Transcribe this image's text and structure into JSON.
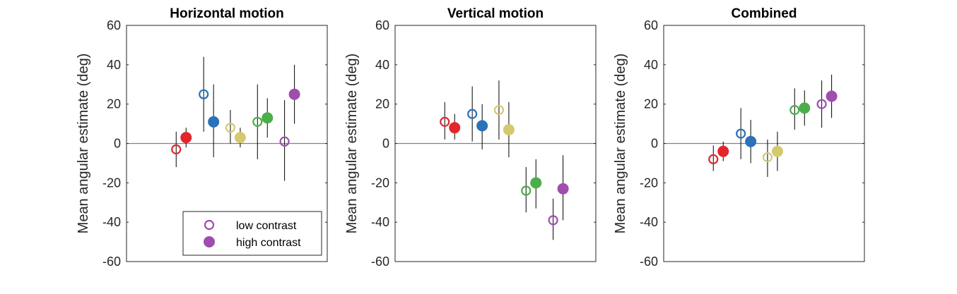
{
  "legend": {
    "position": "bottom-right",
    "entries": [
      {
        "label": "low contrast",
        "style": "open"
      },
      {
        "label": "high contrast",
        "style": "filled"
      }
    ],
    "color": "#9F4DAF"
  },
  "colors": {
    "red": "#E3262B",
    "blue": "#2B72B8",
    "yellow": "#D4C96E",
    "green": "#4AAE4A",
    "purple": "#9F4DAF"
  },
  "chart_data": [
    {
      "type": "scatter",
      "title": "Horizontal motion",
      "ylabel": "Mean angular estimate (deg)",
      "ylim": [
        -60,
        60
      ],
      "yticks": [
        -60,
        -40,
        -20,
        0,
        20,
        40,
        60
      ],
      "xticks": [],
      "reference_line": 0,
      "legend_shown": true,
      "conditions": [
        {
          "color": "red",
          "low": {
            "y": -3,
            "lo": -12,
            "hi": 6
          },
          "high": {
            "y": 3,
            "lo": -2,
            "hi": 8
          }
        },
        {
          "color": "blue",
          "low": {
            "y": 25,
            "lo": 6,
            "hi": 44
          },
          "high": {
            "y": 11,
            "lo": -7,
            "hi": 30
          }
        },
        {
          "color": "yellow",
          "low": {
            "y": 8,
            "lo": 0,
            "hi": 17
          },
          "high": {
            "y": 3,
            "lo": -2,
            "hi": 8
          }
        },
        {
          "color": "green",
          "low": {
            "y": 11,
            "lo": -8,
            "hi": 30
          },
          "high": {
            "y": 13,
            "lo": 3,
            "hi": 23
          }
        },
        {
          "color": "purple",
          "low": {
            "y": 1,
            "lo": -19,
            "hi": 22
          },
          "high": {
            "y": 25,
            "lo": 10,
            "hi": 40
          }
        }
      ]
    },
    {
      "type": "scatter",
      "title": "Vertical motion",
      "ylabel": "Mean angular estimate (deg)",
      "ylim": [
        -60,
        60
      ],
      "yticks": [
        -60,
        -40,
        -20,
        0,
        20,
        40,
        60
      ],
      "xticks": [],
      "reference_line": 0,
      "legend_shown": false,
      "conditions": [
        {
          "color": "red",
          "low": {
            "y": 11,
            "lo": 2,
            "hi": 21
          },
          "high": {
            "y": 8,
            "lo": 2,
            "hi": 15
          }
        },
        {
          "color": "blue",
          "low": {
            "y": 15,
            "lo": 1,
            "hi": 29
          },
          "high": {
            "y": 9,
            "lo": -3,
            "hi": 20
          }
        },
        {
          "color": "yellow",
          "low": {
            "y": 17,
            "lo": 2,
            "hi": 32
          },
          "high": {
            "y": 7,
            "lo": -7,
            "hi": 21
          }
        },
        {
          "color": "green",
          "low": {
            "y": -24,
            "lo": -35,
            "hi": -12
          },
          "high": {
            "y": -20,
            "lo": -33,
            "hi": -8
          }
        },
        {
          "color": "purple",
          "low": {
            "y": -39,
            "lo": -49,
            "hi": -28
          },
          "high": {
            "y": -23,
            "lo": -39,
            "hi": -6
          }
        }
      ]
    },
    {
      "type": "scatter",
      "title": "Combined",
      "ylabel": "Mean angular estimate (deg)",
      "ylim": [
        -60,
        60
      ],
      "yticks": [
        -60,
        -40,
        -20,
        0,
        20,
        40,
        60
      ],
      "xticks": [],
      "reference_line": 0,
      "legend_shown": false,
      "conditions": [
        {
          "color": "red",
          "low": {
            "y": -8,
            "lo": -14,
            "hi": -1
          },
          "high": {
            "y": -4,
            "lo": -9,
            "hi": 1
          }
        },
        {
          "color": "blue",
          "low": {
            "y": 5,
            "lo": -8,
            "hi": 18
          },
          "high": {
            "y": 1,
            "lo": -10,
            "hi": 12
          }
        },
        {
          "color": "yellow",
          "low": {
            "y": -7,
            "lo": -17,
            "hi": 2
          },
          "high": {
            "y": -4,
            "lo": -14,
            "hi": 6
          }
        },
        {
          "color": "green",
          "low": {
            "y": 17,
            "lo": 7,
            "hi": 28
          },
          "high": {
            "y": 18,
            "lo": 9,
            "hi": 27
          }
        },
        {
          "color": "purple",
          "low": {
            "y": 20,
            "lo": 8,
            "hi": 32
          },
          "high": {
            "y": 24,
            "lo": 13,
            "hi": 35
          }
        }
      ]
    }
  ]
}
